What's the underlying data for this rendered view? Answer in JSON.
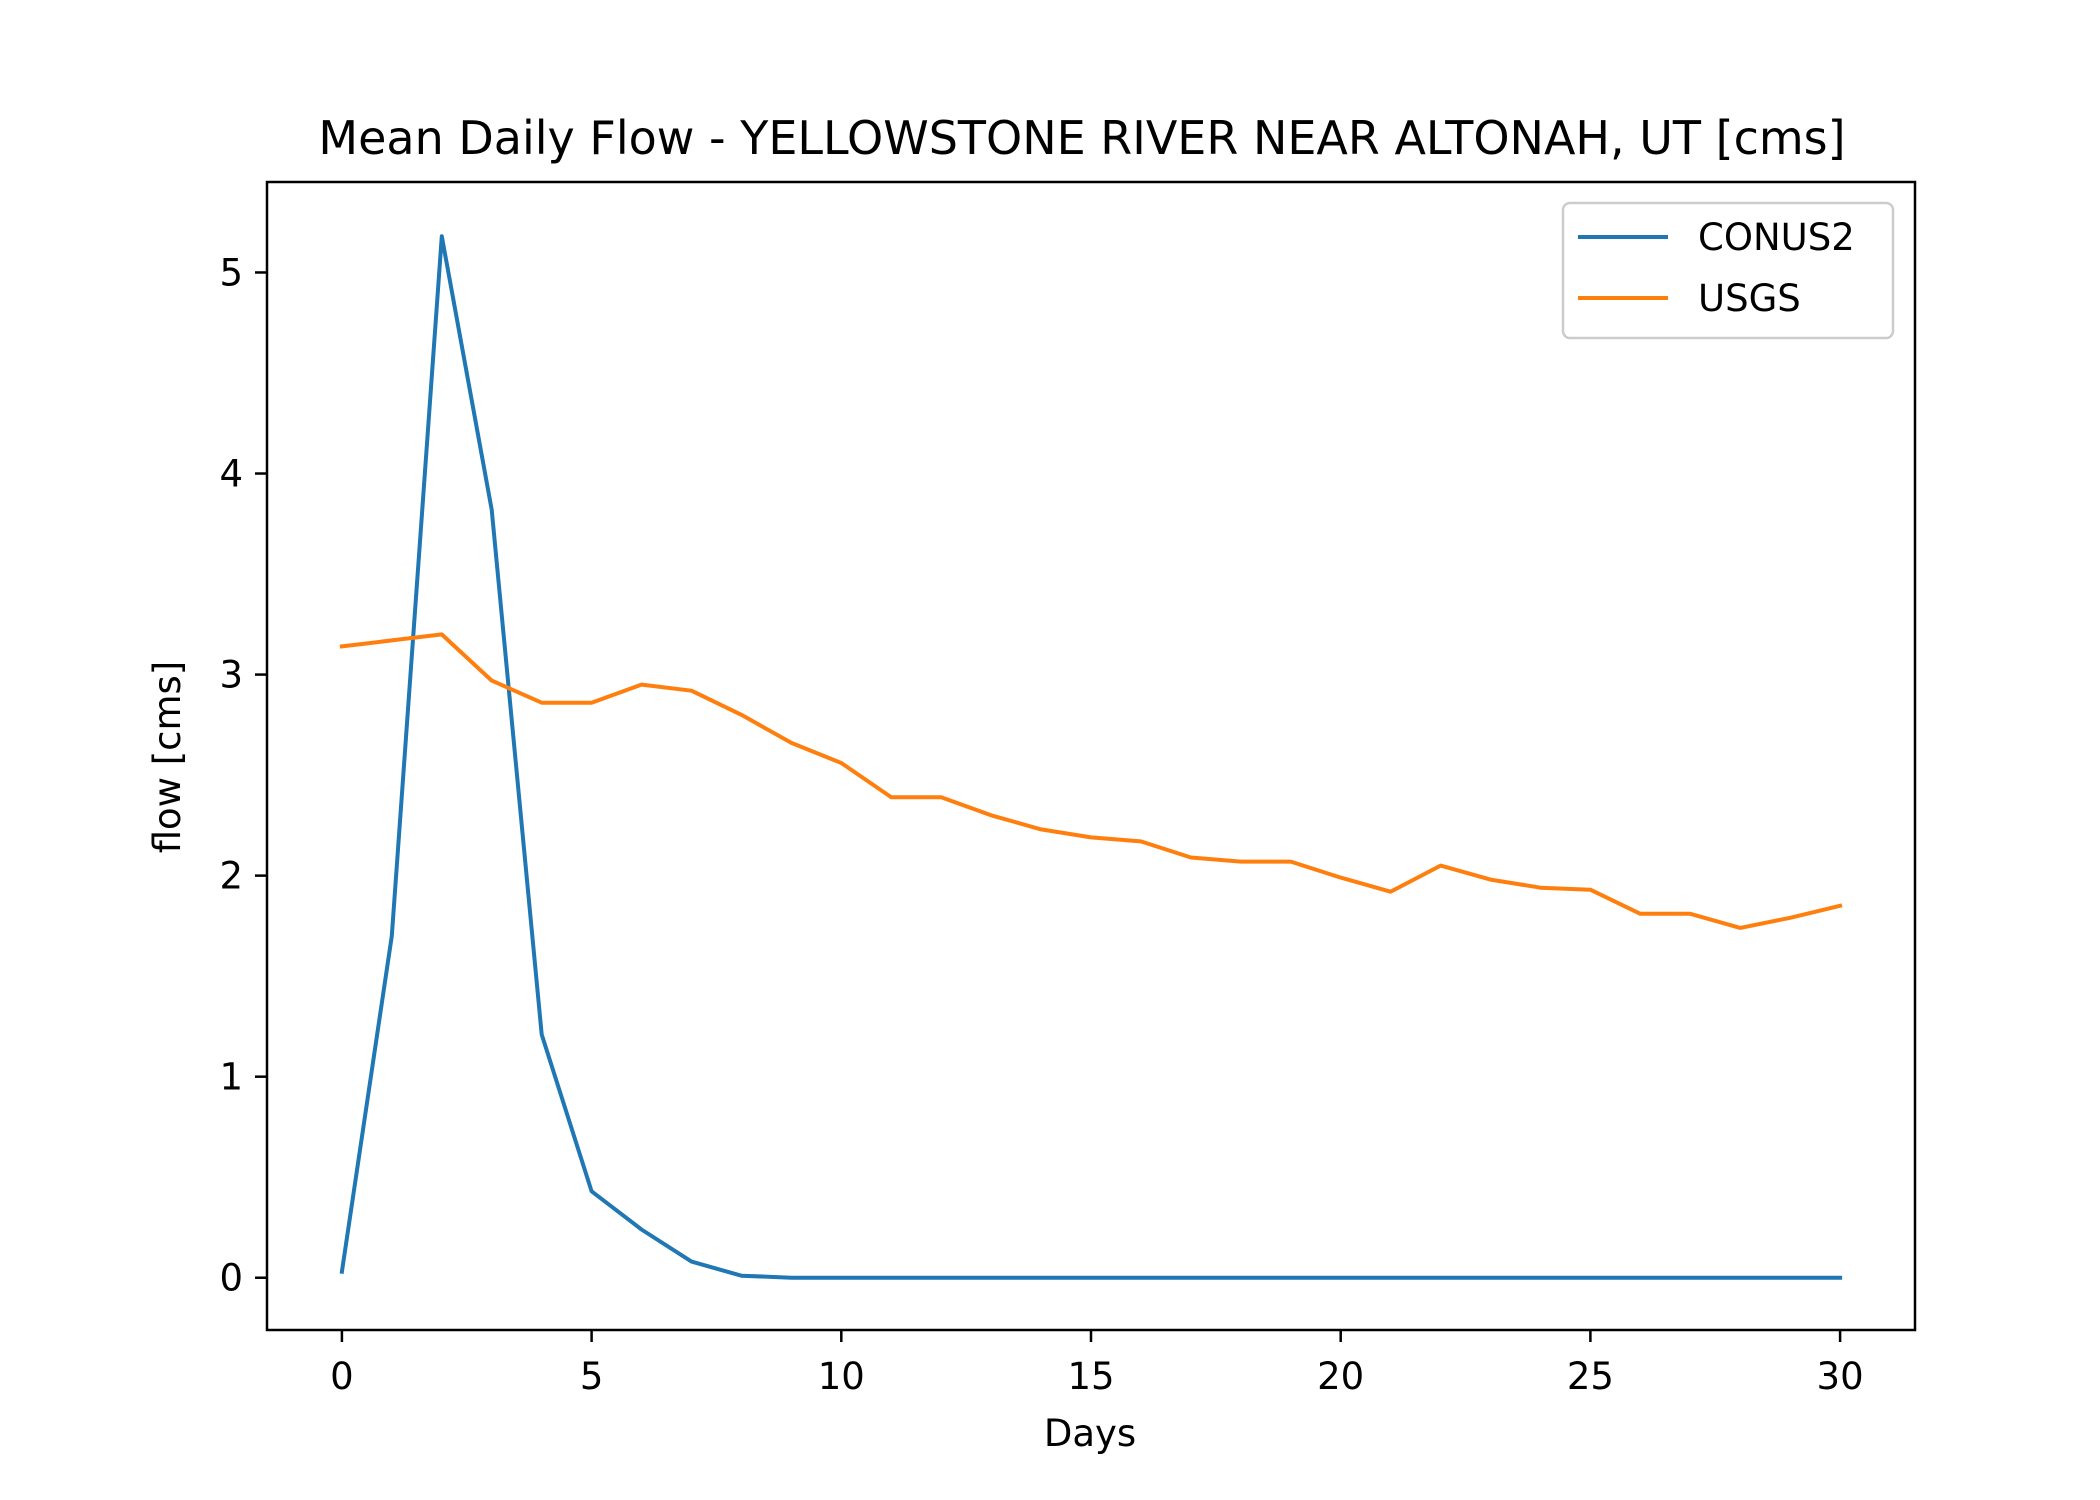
{
  "chart_data": {
    "type": "line",
    "title": "Mean Daily Flow - YELLOWSTONE RIVER NEAR ALTONAH, UT [cms]",
    "xlabel": "Days",
    "ylabel": "flow [cms]",
    "xlim": [
      -1.5,
      31.5
    ],
    "ylim": [
      -0.26,
      5.45
    ],
    "xticks": [
      0,
      5,
      10,
      15,
      20,
      25,
      30
    ],
    "yticks": [
      0,
      1,
      2,
      3,
      4,
      5
    ],
    "grid": false,
    "legend_position": "top-right",
    "x": [
      0,
      1,
      2,
      3,
      4,
      5,
      6,
      7,
      8,
      9,
      10,
      11,
      12,
      13,
      14,
      15,
      16,
      17,
      18,
      19,
      20,
      21,
      22,
      23,
      24,
      25,
      26,
      27,
      28,
      29,
      30
    ],
    "series": [
      {
        "name": "CONUS2",
        "color": "#1f77b4",
        "values": [
          0.03,
          1.7,
          5.18,
          3.82,
          1.21,
          0.43,
          0.24,
          0.08,
          0.01,
          0.0,
          0.0,
          0.0,
          0.0,
          0.0,
          0.0,
          0.0,
          0.0,
          0.0,
          0.0,
          0.0,
          0.0,
          0.0,
          0.0,
          0.0,
          0.0,
          0.0,
          0.0,
          0.0,
          0.0,
          0.0,
          0.0
        ]
      },
      {
        "name": "USGS",
        "color": "#ff7f0e",
        "values": [
          3.14,
          3.17,
          3.2,
          2.97,
          2.86,
          2.86,
          2.95,
          2.92,
          2.8,
          2.66,
          2.56,
          2.39,
          2.39,
          2.3,
          2.23,
          2.19,
          2.17,
          2.09,
          2.07,
          2.07,
          1.99,
          1.92,
          2.05,
          1.98,
          1.94,
          1.93,
          1.81,
          1.81,
          1.74,
          1.79,
          1.85
        ]
      }
    ]
  }
}
